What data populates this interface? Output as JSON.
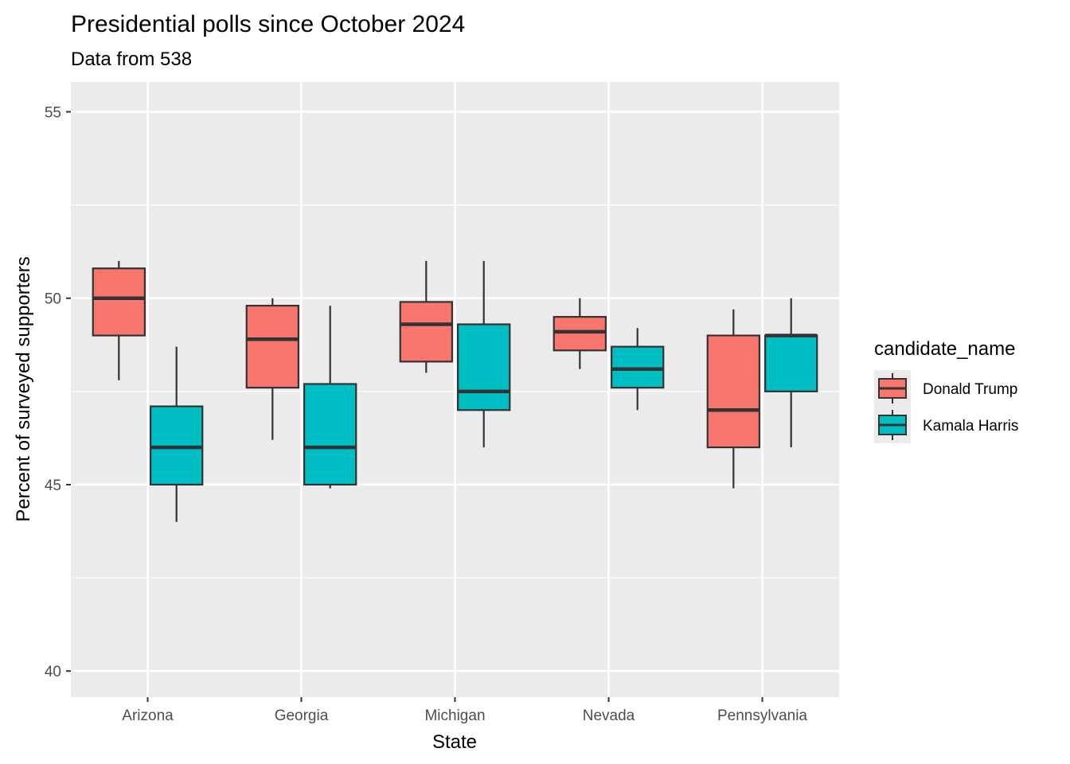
{
  "chart_data": {
    "type": "boxplot",
    "title": "Presidential polls since October 2024",
    "subtitle": "Data from 538",
    "xlabel": "State",
    "ylabel": "Percent of surveyed supporters",
    "ylim": [
      39.3,
      55.8
    ],
    "yticks": [
      40,
      45,
      50,
      55
    ],
    "categories": [
      "Arizona",
      "Georgia",
      "Michigan",
      "Nevada",
      "Pennsylvania"
    ],
    "legend": {
      "title": "candidate_name",
      "position": "right"
    },
    "series": [
      {
        "name": "Donald Trump",
        "color": "#F8766D",
        "boxes": [
          {
            "min": 47.8,
            "q1": 49.0,
            "median": 50.0,
            "q3": 50.8,
            "max": 51.0
          },
          {
            "min": 46.2,
            "q1": 47.6,
            "median": 48.9,
            "q3": 49.8,
            "max": 50.0
          },
          {
            "min": 48.0,
            "q1": 48.3,
            "median": 49.3,
            "q3": 49.9,
            "max": 51.0
          },
          {
            "min": 48.1,
            "q1": 48.6,
            "median": 49.1,
            "q3": 49.5,
            "max": 50.0
          },
          {
            "min": 44.9,
            "q1": 46.0,
            "median": 47.0,
            "q3": 49.0,
            "max": 49.7
          }
        ]
      },
      {
        "name": "Kamala Harris",
        "color": "#00BFC4",
        "boxes": [
          {
            "min": 44.0,
            "q1": 45.0,
            "median": 46.0,
            "q3": 47.1,
            "max": 48.7
          },
          {
            "min": 44.9,
            "q1": 45.0,
            "median": 46.0,
            "q3": 47.7,
            "max": 49.8
          },
          {
            "min": 46.0,
            "q1": 47.0,
            "median": 47.5,
            "q3": 49.3,
            "max": 51.0
          },
          {
            "min": 47.0,
            "q1": 47.6,
            "median": 48.1,
            "q3": 48.7,
            "max": 49.2
          },
          {
            "min": 46.0,
            "q1": 47.5,
            "median": 49.0,
            "q3": 49.0,
            "max": 50.0
          }
        ]
      }
    ]
  }
}
